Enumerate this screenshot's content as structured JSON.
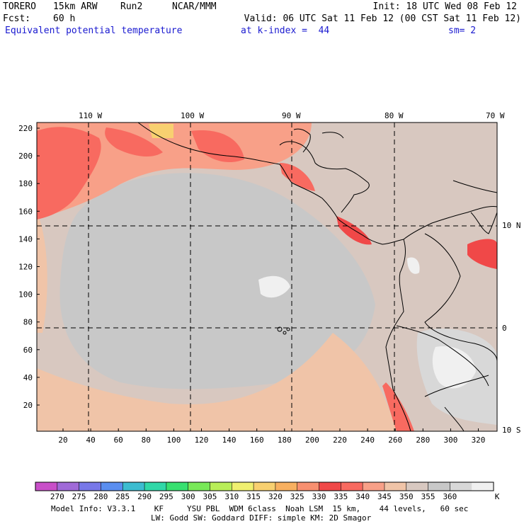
{
  "header": {
    "model": "TORERO",
    "resolution": "15km ARW",
    "run": "Run2",
    "org": "NCAR/MMM",
    "init": "Init: 18 UTC Wed 08 Feb 12",
    "fcst_label": "Fcst:",
    "fcst_value": "60 h",
    "valid": "Valid: 06 UTC Sat 11 Feb 12 (00 CST Sat 11 Feb 12)",
    "field": "Equivalent potential temperature",
    "level": "at k-index =  44",
    "smoothing": "sm= 2"
  },
  "map": {
    "top_axis": [
      "110 W",
      "100 W",
      "90 W",
      "80 W",
      "70 W"
    ],
    "left_axis": [
      "220",
      "200",
      "180",
      "160",
      "140",
      "120",
      "100",
      "80",
      "60",
      "40",
      "20"
    ],
    "bottom_axis": [
      "20",
      "40",
      "60",
      "80",
      "100",
      "120",
      "140",
      "160",
      "180",
      "200",
      "220",
      "240",
      "260",
      "280",
      "300",
      "320"
    ],
    "right_axis": [
      "10 N",
      "0",
      "10 S"
    ]
  },
  "colorbar": {
    "labels": [
      "270",
      "275",
      "280",
      "285",
      "290",
      "295",
      "300",
      "305",
      "310",
      "315",
      "320",
      "325",
      "330",
      "335",
      "340",
      "345",
      "350",
      "355",
      "360"
    ],
    "unit": "K",
    "colors": [
      "#c84fc8",
      "#a06ad8",
      "#7878e8",
      "#5a8ef0",
      "#3cbcd0",
      "#30d8a8",
      "#38e070",
      "#78e858",
      "#b8ee58",
      "#f0f070",
      "#f8d070",
      "#f8b060",
      "#f89070",
      "#f04848",
      "#f86a60",
      "#f8a088",
      "#f0c4a8",
      "#d8c8c0",
      "#c8c8c8",
      "#d8d8d8",
      "#f0f0f0"
    ]
  },
  "footer": {
    "line1": "Model Info: V3.3.1    KF     YSU PBL  WDM 6class  Noah LSM  15 km,    44 levels,   60 sec",
    "line2": "LW: Godd SW: Goddard DIFF: simple KM: 2D Smagor"
  }
}
